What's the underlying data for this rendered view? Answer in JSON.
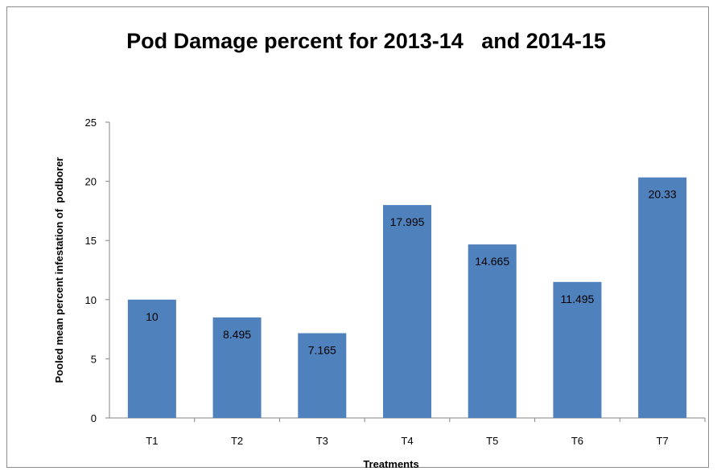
{
  "chart_data": {
    "type": "bar",
    "title": "Pod Damage percent for 2013-14   and 2014-15",
    "xlabel": "Treatments",
    "ylabel": "Pooled mean percent infestation of  podborer",
    "categories": [
      "T1",
      "T2",
      "T3",
      "T4",
      "T5",
      "T6",
      "T7"
    ],
    "values": [
      10,
      8.495,
      7.165,
      17.995,
      14.665,
      11.495,
      20.33
    ],
    "data_labels": [
      "10",
      "8.495",
      "7.165",
      "17.995",
      "14.665",
      "11.495",
      "20.33"
    ],
    "ylim": [
      0,
      25
    ],
    "yticks": [
      0,
      5,
      10,
      15,
      20,
      25
    ],
    "grid": false,
    "legend": "none",
    "bar_color": "#4f81bd"
  }
}
